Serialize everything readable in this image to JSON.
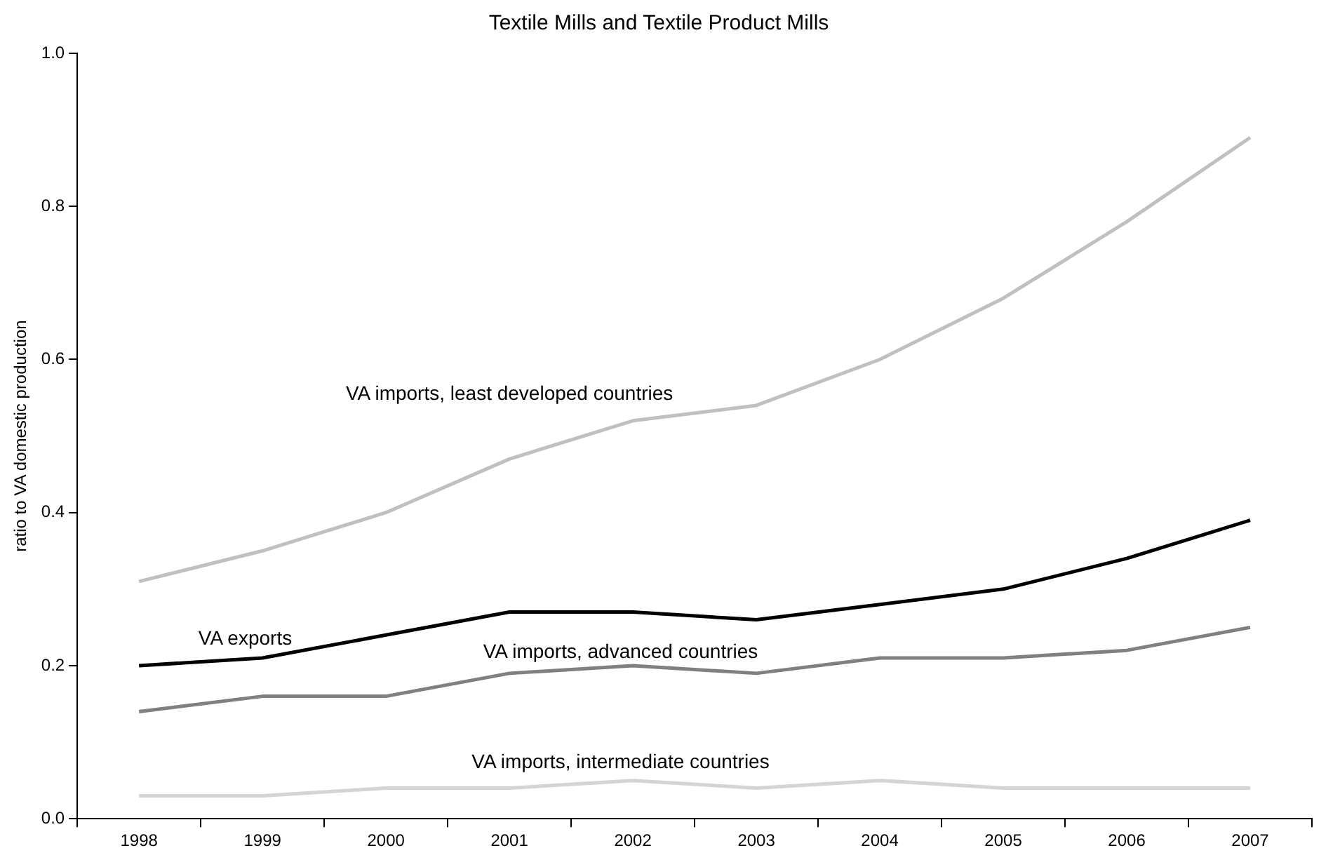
{
  "chart_data": {
    "type": "line",
    "title": "Textile Mills and Textile Product Mills",
    "ylabel": "ratio to VA domestic production",
    "categories": [
      "1998",
      "1999",
      "2000",
      "2001",
      "2002",
      "2003",
      "2004",
      "2005",
      "2006",
      "2007"
    ],
    "series": [
      {
        "name": "VA imports, least developed countries",
        "color": "#c0c0c0",
        "values": [
          0.31,
          0.35,
          0.4,
          0.47,
          0.52,
          0.54,
          0.6,
          0.68,
          0.78,
          0.89
        ]
      },
      {
        "name": "VA exports",
        "color": "#000000",
        "values": [
          0.2,
          0.21,
          0.24,
          0.27,
          0.27,
          0.26,
          0.28,
          0.3,
          0.34,
          0.39
        ]
      },
      {
        "name": "VA imports, advanced countries",
        "color": "#808080",
        "values": [
          0.14,
          0.16,
          0.16,
          0.19,
          0.2,
          0.19,
          0.21,
          0.21,
          0.22,
          0.25
        ]
      },
      {
        "name": "VA imports, intermediate countries",
        "color": "#d4d4d4",
        "values": [
          0.03,
          0.03,
          0.04,
          0.04,
          0.05,
          0.04,
          0.05,
          0.04,
          0.04,
          0.04
        ]
      }
    ],
    "ylim": [
      0,
      1
    ],
    "yticks": [
      {
        "value": 0,
        "label": "0.0"
      },
      {
        "value": 0.2,
        "label": "0.2"
      },
      {
        "value": 0.4,
        "label": "0.4"
      },
      {
        "value": 0.6,
        "label": "0.6"
      },
      {
        "value": 0.8,
        "label": "0.8"
      },
      {
        "value": 1,
        "label": "1.0"
      }
    ],
    "grid": false,
    "legend": false,
    "marker": "none",
    "line_style": "solid"
  }
}
